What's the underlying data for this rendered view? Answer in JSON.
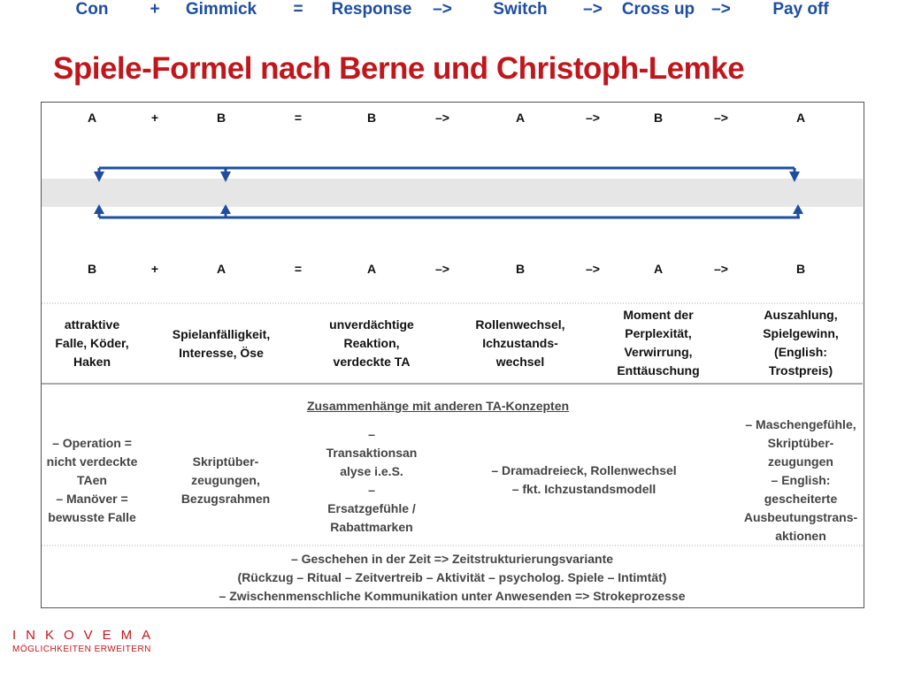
{
  "title": "Spiele-Formel nach Berne und Christoph-Lemke",
  "top_row": [
    "A",
    "+",
    "B",
    "=",
    "B",
    "–>",
    "A",
    "–>",
    "B",
    "–>",
    "A"
  ],
  "formula": [
    "Con",
    "+",
    "Gimmick",
    "=",
    "Response",
    "–>",
    "Switch",
    "–>",
    "Cross up",
    "–>",
    "Pay off"
  ],
  "bottom_row": [
    "B",
    "+",
    "A",
    "=",
    "A",
    "–>",
    "B",
    "–>",
    "A",
    "–>",
    "B"
  ],
  "descriptions": [
    [
      "attraktive",
      "Falle, Köder,",
      "Haken"
    ],
    [
      "Spielanfälligkeit,",
      "Interesse, Öse"
    ],
    [
      "unverdächtige",
      "Reaktion,",
      "verdeckte TA"
    ],
    [
      "Rollenwechsel,",
      "Ichzustands-",
      "wechsel"
    ],
    [
      "Moment der",
      "Perplexität,",
      "Verwirrung,",
      "Enttäuschung"
    ],
    [
      "Auszahlung,",
      "Spielgewinn,",
      "(English:",
      "Trostpreis)"
    ]
  ],
  "concepts_heading": "Zusammenhänge mit anderen TA-Konzepten",
  "concepts": [
    [
      "– Operation =",
      "nicht verdeckte",
      "TAen",
      "– Manöver =",
      "bewusste Falle"
    ],
    [
      "Skriptüber-",
      "zeugungen,",
      "Bezugsrahmen"
    ],
    [
      "–",
      "Transaktionsan",
      "alyse i.e.S.",
      "–",
      "Ersatzgefühle /",
      "Rabattmarken"
    ],
    [
      "– Dramadreieck, Rollenwechsel",
      "– fkt. Ichzustandsmodell"
    ],
    [
      "– Maschengefühle,",
      "Skriptüber-",
      "zeugungen",
      "– English:",
      "gescheiterte",
      "Ausbeutungstrans-",
      "aktionen"
    ]
  ],
  "footer_lines": [
    "– Geschehen in der Zeit => Zeitstrukturierungsvariante",
    "(Rückzug – Ritual – Zeitvertreib – Aktivität – psycholog. Spiele – Intimtät)",
    "– Zwischenmenschliche Kommunikation unter Anwesenden => Strokeprozesse"
  ],
  "logo": {
    "name": "INKOVEMA",
    "tagline": "MÖGLICHKEITEN ERWEITERN"
  },
  "colors": {
    "title": "#c0171c",
    "formula": "#1f4ea0",
    "band": "#e6e6e6"
  }
}
